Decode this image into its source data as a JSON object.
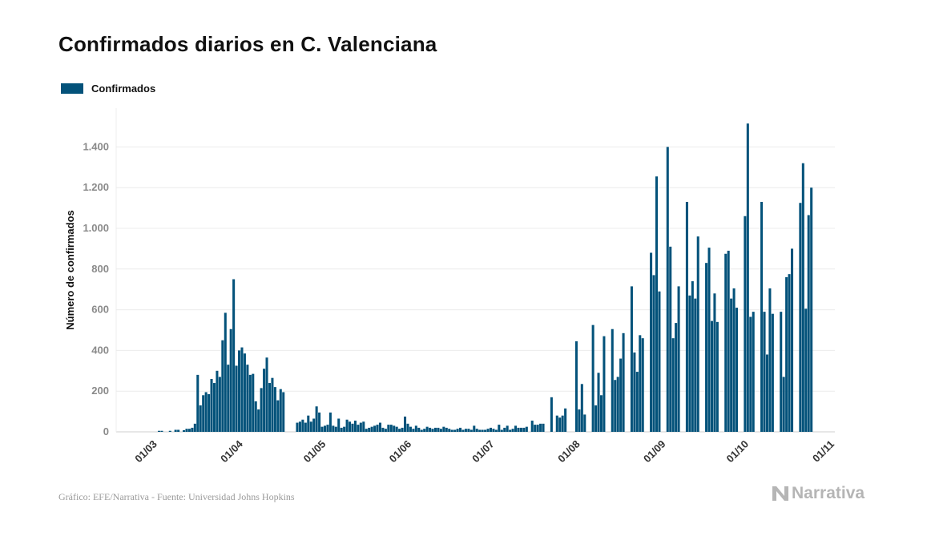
{
  "title": "Confirmados diarios en C. Valenciana",
  "legend": {
    "label": "Confirmados",
    "color": "#03527a"
  },
  "footer": {
    "source": "Gráfico: EFE/Narrativa - Fuente: Universidad Johns Hopkins",
    "brand": "Narrativa"
  },
  "chart_data": {
    "type": "bar",
    "title": "Confirmados diarios en C. Valenciana",
    "xlabel": "",
    "ylabel": "Número de confirmados",
    "ylim": [
      0,
      1600
    ],
    "y_ticks": [
      0,
      200,
      400,
      600,
      800,
      1000,
      1200,
      1400
    ],
    "y_tick_labels": [
      "0",
      "200",
      "400",
      "600",
      "800",
      "1.000",
      "1.200",
      "1.400"
    ],
    "x_tick_labels": [
      "01/03",
      "01/04",
      "01/05",
      "01/06",
      "01/07",
      "01/08",
      "01/09",
      "01/10",
      "01/11"
    ],
    "x_tick_dates": [
      "2020-03-01",
      "2020-04-01",
      "2020-05-01",
      "2020-06-01",
      "2020-07-01",
      "2020-08-01",
      "2020-09-01",
      "2020-10-01",
      "2020-11-01"
    ],
    "x_start": "2020-02-15",
    "x_end": "2020-11-01",
    "grid": true,
    "legend_position": "top-left",
    "series": [
      {
        "name": "Confirmados",
        "color": "#03527a",
        "values": [
          0,
          0,
          0,
          0,
          0,
          0,
          0,
          0,
          0,
          0,
          0,
          0,
          0,
          0,
          0,
          5,
          5,
          0,
          0,
          5,
          0,
          10,
          10,
          0,
          8,
          15,
          15,
          20,
          40,
          280,
          130,
          180,
          195,
          185,
          260,
          240,
          300,
          270,
          450,
          585,
          330,
          505,
          750,
          325,
          400,
          415,
          385,
          330,
          280,
          285,
          150,
          110,
          215,
          310,
          365,
          240,
          265,
          220,
          155,
          210,
          195,
          0,
          0,
          0,
          0,
          45,
          50,
          60,
          45,
          80,
          50,
          65,
          125,
          95,
          25,
          30,
          35,
          95,
          30,
          25,
          65,
          20,
          25,
          60,
          50,
          40,
          55,
          35,
          45,
          50,
          15,
          20,
          25,
          30,
          35,
          45,
          20,
          15,
          35,
          35,
          30,
          25,
          15,
          20,
          75,
          40,
          25,
          15,
          30,
          20,
          10,
          15,
          25,
          20,
          15,
          20,
          20,
          15,
          25,
          20,
          15,
          10,
          10,
          15,
          20,
          10,
          15,
          15,
          10,
          30,
          15,
          10,
          10,
          10,
          15,
          20,
          15,
          10,
          35,
          10,
          20,
          30,
          10,
          15,
          30,
          20,
          20,
          20,
          25,
          0,
          55,
          35,
          35,
          40,
          40,
          0,
          0,
          170,
          0,
          80,
          70,
          80,
          115,
          0,
          0,
          0,
          445,
          110,
          235,
          85,
          0,
          0,
          525,
          130,
          290,
          180,
          470,
          0,
          0,
          505,
          255,
          270,
          360,
          485,
          0,
          0,
          715,
          390,
          295,
          475,
          460,
          0,
          0,
          880,
          770,
          1255,
          690,
          0,
          0,
          1400,
          910,
          460,
          535,
          715,
          0,
          0,
          1130,
          670,
          740,
          655,
          960,
          0,
          0,
          830,
          905,
          545,
          680,
          540,
          0,
          0,
          875,
          890,
          655,
          705,
          610,
          0,
          0,
          1060,
          1515,
          565,
          590,
          0,
          0,
          1130,
          590,
          380,
          705,
          580,
          0,
          0,
          590,
          270,
          760,
          775,
          900,
          0,
          0,
          1125,
          1320,
          605,
          1065,
          1200,
          0,
          0,
          0,
          0,
          0,
          0,
          0,
          0,
          0,
          0,
          0,
          0,
          0,
          0
        ]
      }
    ]
  }
}
